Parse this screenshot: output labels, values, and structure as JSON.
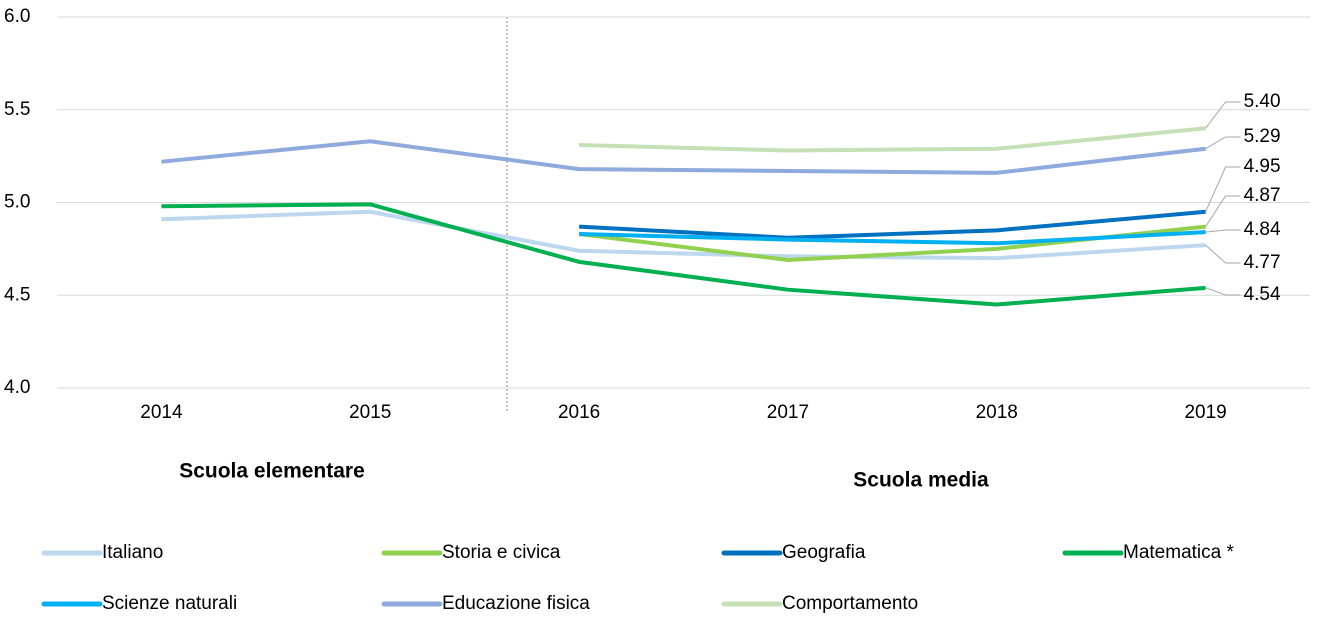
{
  "chart_data": {
    "type": "line",
    "categories": [
      "2014",
      "2015",
      "2016",
      "2017",
      "2018",
      "2019"
    ],
    "annotations": [
      "Scuola elementare",
      "Scuola media"
    ],
    "ylim": [
      4.0,
      6.0
    ],
    "yticks": [
      {
        "value": 4.0,
        "label": "4.0"
      },
      4.5,
      {
        "value": 5.0,
        "label": "5.0"
      },
      5.5,
      {
        "value": 6.0,
        "label": "6.0"
      }
    ],
    "grid": true,
    "legend": "bottom",
    "series": [
      {
        "name": "Italiano",
        "color": "#bdd7ee",
        "values": [
          4.91,
          4.95,
          4.74,
          4.71,
          4.7,
          4.77
        ],
        "value_labels": [
          null,
          null,
          null,
          null,
          null,
          "4.77"
        ]
      },
      {
        "name": "Storia e civica",
        "color": "#92d050",
        "values": [
          null,
          null,
          4.83,
          4.69,
          4.75,
          4.87
        ],
        "value_labels": [
          null,
          null,
          null,
          null,
          null,
          "4.87"
        ]
      },
      {
        "name": "Geografia",
        "color": "#0070c0",
        "values": [
          null,
          null,
          4.87,
          4.81,
          4.85,
          4.95
        ],
        "value_labels": [
          null,
          null,
          null,
          null,
          null,
          "4.95"
        ]
      },
      {
        "name": "Matematica *",
        "color": "#00b050",
        "values": [
          4.98,
          4.99,
          4.68,
          4.53,
          4.45,
          4.54
        ],
        "value_labels": [
          null,
          null,
          null,
          null,
          null,
          "4.54"
        ]
      },
      {
        "name": "Scienze naturali",
        "color": "#00b0f0",
        "values": [
          null,
          null,
          4.83,
          4.8,
          4.78,
          4.84
        ],
        "value_labels": [
          null,
          null,
          null,
          null,
          null,
          "4.84"
        ]
      },
      {
        "name": "Educazione fisica",
        "color": "#8faadc",
        "values": [
          5.22,
          5.33,
          5.18,
          5.17,
          5.16,
          5.29
        ],
        "value_labels": [
          null,
          null,
          null,
          null,
          null,
          "5.29"
        ]
      },
      {
        "name": "Comportamento",
        "color": "#c5e0b4",
        "values": [
          null,
          null,
          5.31,
          5.28,
          5.29,
          5.4
        ],
        "value_labels": [
          null,
          null,
          null,
          null,
          null,
          "5.40"
        ]
      }
    ]
  }
}
